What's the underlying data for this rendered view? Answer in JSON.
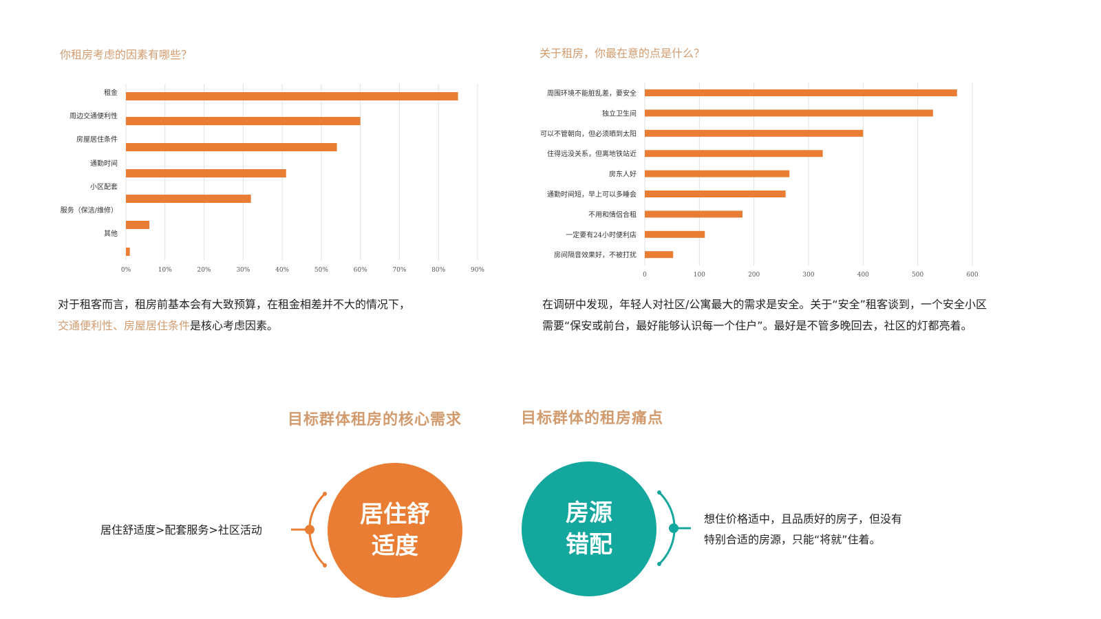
{
  "colors": {
    "bar": "#e87d33",
    "accent": "#d29b6e",
    "orange_circle": "#e87d33",
    "teal_circle": "#14a79e",
    "grid": "#e0e0e0"
  },
  "chart_data": [
    {
      "type": "bar",
      "orientation": "horizontal",
      "title": "你租房考虑的因素有哪些？",
      "categories": [
        "租金",
        "周边交通便利性",
        "房屋居住条件",
        "通勤时间",
        "小区配套",
        "服务（保洁/维修）",
        "其他"
      ],
      "values": [
        0.85,
        0.6,
        0.54,
        0.41,
        0.32,
        0.06,
        0.01
      ],
      "xlim": [
        0,
        0.9
      ],
      "xticks": [
        "0%",
        "10%",
        "20%",
        "30%",
        "40%",
        "50%",
        "60%",
        "70%",
        "80%",
        "90%"
      ],
      "grid": true
    },
    {
      "type": "bar",
      "orientation": "horizontal",
      "title": "关于租房，你最在意的点是什么？",
      "categories": [
        "周围环境不能脏乱差，要安全",
        "独立卫生间",
        "可以不管朝向，但必须晒到太阳",
        "住得远没关系，但离地铁站近",
        "房东人好",
        "通勤时间短，早上可以多睡会",
        "不用和情侣合租",
        "一定要有24小时便利店",
        "房间隔音效果好，不被打扰"
      ],
      "values": [
        572,
        528,
        400,
        326,
        265,
        258,
        179,
        110,
        52
      ],
      "xlim": [
        0,
        600
      ],
      "xticks": [
        "0",
        "100",
        "200",
        "300",
        "400",
        "500",
        "600"
      ],
      "grid": true
    }
  ],
  "paragraphs": {
    "left_line1": "对于租客而言，租房前基本会有大致预算，在租金相差并不大的情况下，",
    "left_line2_highlight": "交通便利性、房屋居住条件",
    "left_line2_rest": "是核心考虑因素。",
    "right_line1": "在调研中发现，年轻人对社区/公寓最大的需求是安全。关于“安全”租客谈到，一个安全小区",
    "right_line2": "需要“保安或前台，最好能够认识每一个住户”。最好是不管多晚回去，社区的灯都亮着。"
  },
  "sections": {
    "needs_title": "目标群体租房的核心需求",
    "pain_title": "目标群体的租房痛点",
    "needs_circle_line1": "居住舒",
    "needs_circle_line2": "适度",
    "needs_text": "居住舒适度>配套服务>社区活动",
    "pain_circle_line1": "房源",
    "pain_circle_line2": "错配",
    "pain_text_line1": "想住价格适中，且品质好的房子，但没有",
    "pain_text_line2": "特别合适的房源，只能“将就”住着。"
  }
}
